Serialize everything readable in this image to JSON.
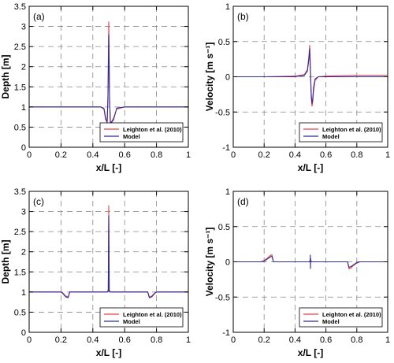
{
  "chart_data": [
    {
      "type": "line",
      "panel_label": "(a)",
      "xlabel": "x/L [-]",
      "ylabel": "Depth [m]",
      "xlim": [
        0,
        1
      ],
      "ylim": [
        0,
        3.5
      ],
      "xticks": [
        "0",
        "0.2",
        "0.4",
        "0.6",
        "0.8",
        "1"
      ],
      "yticks": [
        "0",
        "0.5",
        "1",
        "1.5",
        "2",
        "2.5",
        "3",
        "3.5"
      ],
      "grid": "dashed",
      "legend_position": "bottom-right",
      "series": [
        {
          "name": "Leighton et al. (2010)",
          "color": "#e8414b",
          "x": [
            0,
            0.2,
            0.4,
            0.45,
            0.47,
            0.48,
            0.49,
            0.495,
            0.5,
            0.505,
            0.51,
            0.515,
            0.53,
            0.55,
            0.6,
            0.8,
            1
          ],
          "y": [
            1.0,
            1.0,
            1.0,
            1.0,
            0.97,
            0.75,
            0.6,
            1.3,
            3.12,
            1.3,
            0.6,
            0.62,
            0.72,
            0.95,
            1.0,
            1.0,
            1.0
          ]
        },
        {
          "name": "Model",
          "color": "#2a2f9e",
          "x": [
            0,
            0.2,
            0.4,
            0.45,
            0.47,
            0.48,
            0.49,
            0.495,
            0.5,
            0.505,
            0.51,
            0.515,
            0.53,
            0.55,
            0.6,
            0.8,
            1
          ],
          "y": [
            1.0,
            1.0,
            1.0,
            1.0,
            0.95,
            0.7,
            0.62,
            1.2,
            2.8,
            1.2,
            0.65,
            0.6,
            0.68,
            0.97,
            1.0,
            1.0,
            1.0
          ]
        }
      ]
    },
    {
      "type": "line",
      "panel_label": "(b)",
      "xlabel": "x/L [-]",
      "ylabel": "Velocity [m s⁻¹]",
      "xlim": [
        0,
        1
      ],
      "ylim": [
        -1,
        1
      ],
      "xticks": [
        "0",
        "0.2",
        "0.4",
        "0.6",
        "0.8",
        "1"
      ],
      "yticks": [
        "-1",
        "-0.5",
        "0",
        "0.5",
        "1"
      ],
      "grid": "dashed",
      "legend_position": "bottom-right",
      "series": [
        {
          "name": "Leighton et al. (2010)",
          "color": "#e8414b",
          "x": [
            0,
            0.2,
            0.4,
            0.46,
            0.48,
            0.49,
            0.495,
            0.5,
            0.505,
            0.51,
            0.515,
            0.52,
            0.53,
            0.55,
            0.6,
            0.8,
            1
          ],
          "y": [
            0.0,
            0.0,
            0.01,
            0.03,
            0.1,
            0.3,
            0.45,
            0.1,
            -0.3,
            -0.42,
            -0.35,
            -0.2,
            -0.05,
            0.0,
            0.01,
            0.02,
            0.02
          ]
        },
        {
          "name": "Model",
          "color": "#2a2f9e",
          "x": [
            0,
            0.2,
            0.4,
            0.46,
            0.48,
            0.49,
            0.495,
            0.5,
            0.505,
            0.51,
            0.515,
            0.52,
            0.53,
            0.55,
            0.6,
            0.8,
            1
          ],
          "y": [
            0.0,
            0.0,
            0.0,
            0.02,
            0.08,
            0.25,
            0.4,
            0.05,
            -0.25,
            -0.38,
            -0.3,
            -0.15,
            -0.03,
            0.0,
            0.0,
            0.0,
            0.0
          ]
        }
      ]
    },
    {
      "type": "line",
      "panel_label": "(c)",
      "xlabel": "x/L [-]",
      "ylabel": "Depth [m]",
      "xlim": [
        0,
        1
      ],
      "ylim": [
        0,
        3.5
      ],
      "xticks": [
        "0",
        "0.2",
        "0.4",
        "0.6",
        "0.8",
        "1"
      ],
      "yticks": [
        "0",
        "0.5",
        "1",
        "1.5",
        "2",
        "2.5",
        "3",
        "3.5"
      ],
      "grid": "dashed",
      "legend_position": "bottom-right",
      "series": [
        {
          "name": "Leighton et al. (2010)",
          "color": "#e8414b",
          "x": [
            0,
            0.2,
            0.21,
            0.23,
            0.245,
            0.255,
            0.3,
            0.49,
            0.497,
            0.5,
            0.503,
            0.51,
            0.7,
            0.745,
            0.755,
            0.77,
            0.79,
            0.8,
            1
          ],
          "y": [
            1.0,
            1.0,
            0.98,
            0.9,
            0.88,
            1.0,
            1.0,
            1.0,
            1.05,
            3.15,
            1.05,
            1.0,
            1.0,
            1.0,
            0.88,
            0.9,
            0.98,
            1.0,
            1.0
          ]
        },
        {
          "name": "Model",
          "color": "#2a2f9e",
          "x": [
            0,
            0.2,
            0.21,
            0.23,
            0.245,
            0.255,
            0.3,
            0.49,
            0.497,
            0.5,
            0.503,
            0.51,
            0.7,
            0.745,
            0.755,
            0.77,
            0.79,
            0.8,
            1
          ],
          "y": [
            1.0,
            1.0,
            0.97,
            0.88,
            0.86,
            1.0,
            1.0,
            1.0,
            1.02,
            2.9,
            1.02,
            1.0,
            1.0,
            1.0,
            0.86,
            0.88,
            0.97,
            1.0,
            1.0
          ]
        }
      ]
    },
    {
      "type": "line",
      "panel_label": "(d)",
      "xlabel": "x/L [-]",
      "ylabel": "Velocity [m s⁻¹]",
      "xlim": [
        0,
        1
      ],
      "ylim": [
        -1,
        1
      ],
      "xticks": [
        "0",
        "0.2",
        "0.4",
        "0.6",
        "0.8",
        "1"
      ],
      "yticks": [
        "-1",
        "-0.5",
        "0",
        "0.5",
        "1"
      ],
      "grid": "dashed",
      "legend_position": "bottom-right",
      "series": [
        {
          "name": "Leighton et al. (2010)",
          "color": "#e8414b",
          "x": [
            0,
            0.18,
            0.2,
            0.22,
            0.24,
            0.25,
            0.26,
            0.3,
            0.49,
            0.5,
            0.51,
            0.7,
            0.74,
            0.75,
            0.76,
            0.78,
            0.8,
            0.82,
            1
          ],
          "y": [
            0.0,
            0.0,
            0.02,
            0.05,
            0.09,
            0.1,
            0.0,
            0.0,
            0.0,
            0.02,
            0.0,
            0.0,
            0.0,
            -0.1,
            -0.09,
            -0.05,
            -0.02,
            0.0,
            0.0
          ]
        },
        {
          "name": "Model",
          "color": "#2a2f9e",
          "x": [
            0,
            0.18,
            0.2,
            0.22,
            0.24,
            0.25,
            0.26,
            0.3,
            0.498,
            0.499,
            0.5,
            0.501,
            0.502,
            0.7,
            0.74,
            0.75,
            0.76,
            0.78,
            0.8,
            0.82,
            1
          ],
          "y": [
            0.0,
            0.0,
            0.01,
            0.04,
            0.07,
            0.08,
            0.0,
            0.0,
            0.0,
            0.1,
            -0.1,
            0.05,
            0.0,
            0.0,
            0.0,
            -0.08,
            -0.07,
            -0.04,
            -0.01,
            0.0,
            0.0
          ]
        }
      ]
    }
  ]
}
